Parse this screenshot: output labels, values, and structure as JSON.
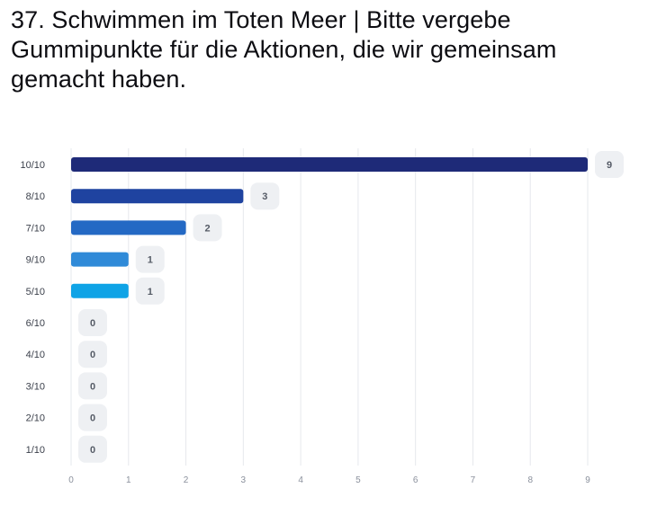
{
  "title": "37. Schwimmen im Toten Meer | Bitte vergebe Gummipunkte für die Aktionen, die wir gemeinsam gemacht haben.",
  "chart_data": {
    "type": "bar",
    "orientation": "horizontal",
    "categories": [
      "10/10",
      "8/10",
      "7/10",
      "9/10",
      "5/10",
      "6/10",
      "4/10",
      "3/10",
      "2/10",
      "1/10"
    ],
    "values": [
      9,
      3,
      2,
      1,
      1,
      0,
      0,
      0,
      0,
      0
    ],
    "colors": [
      "#1e2a78",
      "#1f43a0",
      "#2469c4",
      "#2f8ad8",
      "#0ea3e6",
      "#0ea3e6",
      "#0ea3e6",
      "#0ea3e6",
      "#0ea3e6",
      "#0ea3e6"
    ],
    "xticks": [
      0,
      1,
      2,
      3,
      4,
      5,
      6,
      7,
      8,
      9
    ],
    "xlim": [
      0,
      9
    ],
    "grid": true,
    "label_badge_color": "#eef0f3",
    "gridline_color": "#e6e8ec"
  }
}
